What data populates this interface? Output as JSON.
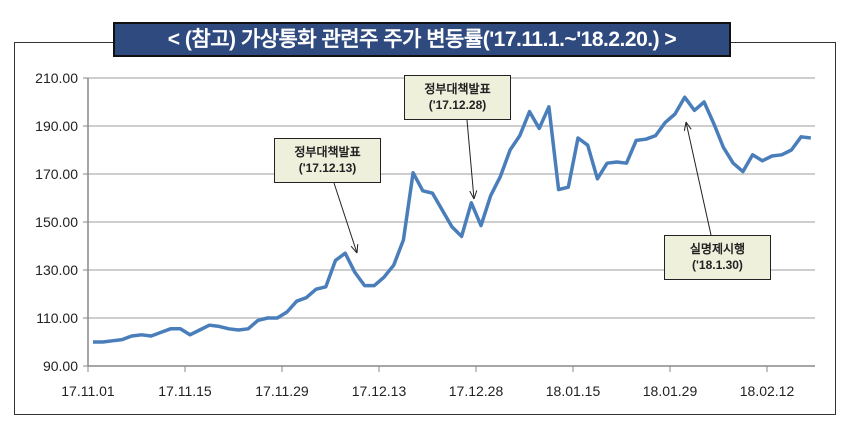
{
  "title": "< (참고) 가상통화 관련주 주가 변동률('17.11.1.~'18.2.20.) >",
  "chart_data": {
    "type": "line",
    "title": "< (참고) 가상통화 관련주 주가 변동률('17.11.1.~'18.2.20.) >",
    "xlabel": "",
    "ylabel": "",
    "ylim": [
      90,
      210
    ],
    "yticks": [
      "90.00",
      "110.00",
      "130.00",
      "150.00",
      "170.00",
      "190.00",
      "210.00"
    ],
    "xtick_labels": [
      "17.11.01",
      "17.11.15",
      "17.11.29",
      "17.12.13",
      "17.12.28",
      "18.01.15",
      "18.01.29",
      "18.02.12"
    ],
    "grid": true,
    "line_color": "#4a7ebb",
    "values": [
      100,
      100,
      100.5,
      101,
      102.5,
      103,
      102.5,
      104,
      105.5,
      105.5,
      103,
      105,
      107,
      106.5,
      105.5,
      105,
      105.5,
      109,
      110,
      110,
      112.5,
      117,
      118.5,
      122,
      123,
      134,
      137,
      129,
      123.5,
      123.5,
      127,
      132,
      142.5,
      170.5,
      163,
      162,
      155,
      148,
      144,
      158,
      148.5,
      161,
      169,
      180,
      186,
      196,
      189,
      198,
      163.5,
      164.5,
      185,
      182,
      168,
      174.5,
      175,
      174.5,
      184,
      184.5,
      186,
      191.5,
      195,
      202,
      196.5,
      200,
      191,
      181,
      174.5,
      171,
      178,
      175.5,
      177.5,
      178,
      180,
      185.5,
      185
    ],
    "annotations": [
      {
        "line1": "정부대책발표",
        "line2": "('17.12.13)"
      },
      {
        "line1": "정부대책발표",
        "line2": "('17.12.28)"
      },
      {
        "line1": "실명제시행",
        "line2": "('18.1.30)"
      }
    ]
  }
}
